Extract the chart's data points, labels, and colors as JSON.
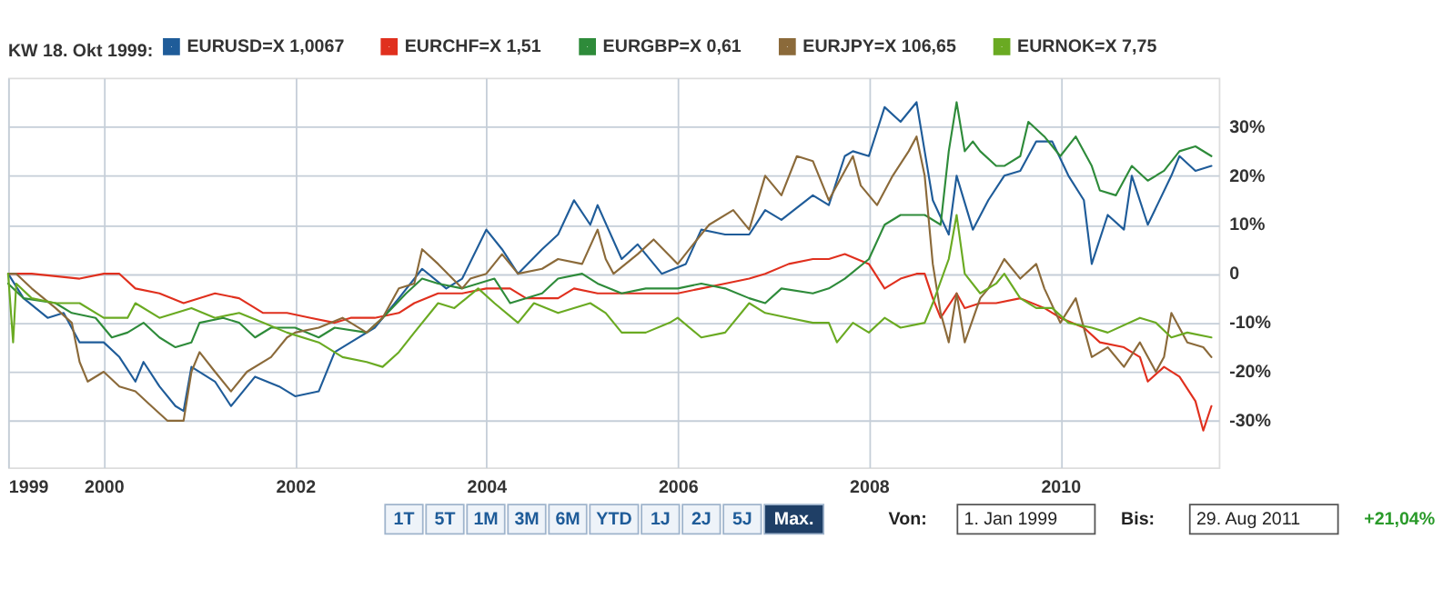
{
  "chart_data": {
    "type": "line",
    "legend_title": "KW 18. Okt 1999:",
    "legend": "top",
    "grid": true,
    "line_style": "solid",
    "xlim": [
      "1999-01-01",
      "2011-08-29"
    ],
    "xticks": [
      "1999",
      "2000",
      "2002",
      "2004",
      "2006",
      "2008",
      "2010"
    ],
    "ylim": [
      -39.5,
      40
    ],
    "yticks": [
      {
        "value": 30,
        "label": "30%"
      },
      {
        "value": 20,
        "label": "20%"
      },
      {
        "value": 10,
        "label": "10%"
      },
      0,
      {
        "value": -10,
        "label": "-10%"
      },
      {
        "value": -20,
        "label": "-20%"
      },
      {
        "value": -30,
        "label": "-30%"
      }
    ],
    "series": [
      {
        "name": "EURUSD=X 1,0067",
        "color": "#1f5c99",
        "x": [
          "1999-01",
          "1999-03",
          "1999-06",
          "1999-08",
          "1999-10",
          "2000-01",
          "2000-03",
          "2000-05",
          "2000-06",
          "2000-08",
          "2000-10",
          "2000-11",
          "2000-12",
          "2001-03",
          "2001-05",
          "2001-08",
          "2001-11",
          "2002-01",
          "2002-04",
          "2002-06",
          "2002-08",
          "2002-11",
          "2003-02",
          "2003-05",
          "2003-08",
          "2003-10",
          "2004-01",
          "2004-03",
          "2004-05",
          "2004-08",
          "2004-10",
          "2004-12",
          "2005-02",
          "2005-03",
          "2005-06",
          "2005-08",
          "2005-11",
          "2006-02",
          "2006-04",
          "2006-07",
          "2006-10",
          "2006-12",
          "2007-02",
          "2007-06",
          "2007-08",
          "2007-10",
          "2007-11",
          "2008-01",
          "2008-03",
          "2008-05",
          "2008-07",
          "2008-08",
          "2008-09",
          "2008-11",
          "2008-12",
          "2009-02",
          "2009-04",
          "2009-06",
          "2009-08",
          "2009-10",
          "2009-12",
          "2010-02",
          "2010-04",
          "2010-05",
          "2010-07",
          "2010-09",
          "2010-10",
          "2010-12",
          "2011-03",
          "2011-04",
          "2011-06",
          "2011-08"
        ],
        "values": [
          0,
          -5,
          -9,
          -8,
          -14,
          -14,
          -17,
          -22,
          -18,
          -23,
          -27,
          -28,
          -19,
          -22,
          -27,
          -21,
          -23,
          -25,
          -24,
          -16,
          -14,
          -11,
          -5,
          1,
          -3,
          -1,
          9,
          5,
          0,
          5,
          8,
          15,
          10,
          14,
          3,
          6,
          0,
          2,
          9,
          8,
          8,
          13,
          11,
          16,
          14,
          24,
          25,
          24,
          34,
          31,
          35,
          25,
          15,
          8,
          20,
          9,
          15,
          20,
          21,
          27,
          27,
          20,
          15,
          2,
          12,
          9,
          20,
          10,
          20,
          24,
          21,
          22
        ]
      },
      {
        "name": "EURCHF=X 1,51",
        "color": "#e0301e",
        "x": [
          "1999-01",
          "1999-04",
          "1999-10",
          "2000-01",
          "2000-03",
          "2000-05",
          "2000-08",
          "2000-11",
          "2001-03",
          "2001-06",
          "2001-09",
          "2001-12",
          "2002-03",
          "2002-06",
          "2002-08",
          "2002-11",
          "2003-02",
          "2003-04",
          "2003-07",
          "2003-10",
          "2004-01",
          "2004-04",
          "2004-06",
          "2004-10",
          "2004-12",
          "2005-03",
          "2005-06",
          "2005-10",
          "2006-01",
          "2006-04",
          "2006-07",
          "2006-10",
          "2006-12",
          "2007-03",
          "2007-06",
          "2007-08",
          "2007-10",
          "2008-01",
          "2008-03",
          "2008-05",
          "2008-07",
          "2008-08",
          "2008-09",
          "2008-10",
          "2008-12",
          "2009-01",
          "2009-03",
          "2009-05",
          "2009-08",
          "2009-11",
          "2010-01",
          "2010-04",
          "2010-06",
          "2010-09",
          "2010-11",
          "2010-12",
          "2011-02",
          "2011-04",
          "2011-06",
          "2011-07",
          "2011-08"
        ],
        "values": [
          0,
          0,
          -1,
          0,
          0,
          -3,
          -4,
          -6,
          -4,
          -5,
          -8,
          -8,
          -9,
          -10,
          -9,
          -9,
          -8,
          -6,
          -4,
          -4,
          -3,
          -3,
          -5,
          -5,
          -3,
          -4,
          -4,
          -4,
          -4,
          -3,
          -2,
          -1,
          0,
          2,
          3,
          3,
          4,
          2,
          -3,
          -1,
          0,
          0,
          -5,
          -9,
          -4,
          -7,
          -6,
          -6,
          -5,
          -7,
          -9,
          -11,
          -14,
          -15,
          -17,
          -22,
          -19,
          -21,
          -26,
          -32,
          -27
        ]
      },
      {
        "name": "EURGBP=X 0,61",
        "color": "#2e8b3a",
        "x": [
          "1999-01",
          "1999-03",
          "1999-07",
          "1999-09",
          "1999-12",
          "2000-02",
          "2000-04",
          "2000-06",
          "2000-08",
          "2000-10",
          "2000-12",
          "2001-01",
          "2001-04",
          "2001-06",
          "2001-08",
          "2001-10",
          "2002-01",
          "2002-04",
          "2002-06",
          "2002-10",
          "2002-12",
          "2003-03",
          "2003-05",
          "2003-07",
          "2003-10",
          "2004-02",
          "2004-04",
          "2004-08",
          "2004-10",
          "2005-01",
          "2005-03",
          "2005-06",
          "2005-09",
          "2006-01",
          "2006-04",
          "2006-07",
          "2006-10",
          "2006-12",
          "2007-02",
          "2007-06",
          "2007-08",
          "2007-10",
          "2008-01",
          "2008-03",
          "2008-05",
          "2008-08",
          "2008-10",
          "2008-11",
          "2008-12",
          "2009-01",
          "2009-02",
          "2009-03",
          "2009-05",
          "2009-06",
          "2009-08",
          "2009-09",
          "2009-11",
          "2010-01",
          "2010-03",
          "2010-05",
          "2010-06",
          "2010-08",
          "2010-10",
          "2010-12",
          "2011-02",
          "2011-04",
          "2011-06",
          "2011-08"
        ],
        "values": [
          -2,
          -5,
          -6,
          -8,
          -9,
          -13,
          -12,
          -10,
          -13,
          -15,
          -14,
          -10,
          -9,
          -10,
          -13,
          -11,
          -11,
          -13,
          -11,
          -12,
          -9,
          -4,
          -1,
          -2,
          -3,
          -1,
          -6,
          -4,
          -1,
          0,
          -2,
          -4,
          -3,
          -3,
          -2,
          -3,
          -5,
          -6,
          -3,
          -4,
          -3,
          -1,
          3,
          10,
          12,
          12,
          10,
          25,
          35,
          25,
          27,
          25,
          22,
          22,
          24,
          31,
          28,
          24,
          28,
          22,
          17,
          16,
          22,
          19,
          21,
          25,
          26,
          24
        ]
      },
      {
        "name": "EURJPY=X 106,65",
        "color": "#8b6a3a",
        "x": [
          "1999-01",
          "1999-02",
          "1999-04",
          "1999-07",
          "1999-09",
          "1999-10",
          "1999-11",
          "2000-01",
          "2000-03",
          "2000-05",
          "2000-07",
          "2000-09",
          "2000-11",
          "2000-12",
          "2001-01",
          "2001-03",
          "2001-05",
          "2001-07",
          "2001-10",
          "2001-12",
          "2002-01",
          "2002-04",
          "2002-07",
          "2002-10",
          "2002-12",
          "2003-02",
          "2003-04",
          "2003-05",
          "2003-07",
          "2003-10",
          "2003-11",
          "2004-01",
          "2004-03",
          "2004-05",
          "2004-08",
          "2004-10",
          "2005-01",
          "2005-03",
          "2005-04",
          "2005-05",
          "2005-08",
          "2005-10",
          "2006-01",
          "2006-03",
          "2006-05",
          "2006-08",
          "2006-10",
          "2006-12",
          "2007-02",
          "2007-04",
          "2007-06",
          "2007-08",
          "2007-10",
          "2007-11",
          "2007-12",
          "2008-02",
          "2008-04",
          "2008-06",
          "2008-07",
          "2008-08",
          "2008-09",
          "2008-10",
          "2008-11",
          "2008-12",
          "2009-01",
          "2009-03",
          "2009-04",
          "2009-06",
          "2009-08",
          "2009-10",
          "2009-11",
          "2010-01",
          "2010-03",
          "2010-05",
          "2010-07",
          "2010-09",
          "2010-11",
          "2011-01",
          "2011-02",
          "2011-03",
          "2011-05",
          "2011-07",
          "2011-08"
        ],
        "values": [
          0,
          0,
          -3,
          -7,
          -10,
          -18,
          -22,
          -20,
          -23,
          -24,
          -27,
          -30,
          -30,
          -20,
          -16,
          -20,
          -24,
          -20,
          -17,
          -13,
          -12,
          -11,
          -9,
          -12,
          -9,
          -3,
          -2,
          5,
          2,
          -3,
          -1,
          0,
          4,
          0,
          1,
          3,
          2,
          9,
          3,
          0,
          4,
          7,
          2,
          6,
          10,
          13,
          9,
          20,
          16,
          24,
          23,
          15,
          21,
          24,
          18,
          14,
          20,
          25,
          28,
          20,
          2,
          -8,
          -14,
          -4,
          -14,
          -5,
          -3,
          3,
          -1,
          2,
          -3,
          -10,
          -5,
          -17,
          -15,
          -19,
          -14,
          -20,
          -17,
          -8,
          -14,
          -15,
          -17
        ]
      },
      {
        "name": "EURNOK=X 7,75",
        "color": "#6aaa22",
        "x": [
          "1999-01",
          "1999-01-20",
          "1999-02",
          "1999-04",
          "1999-07",
          "1999-10",
          "2000-01",
          "2000-04",
          "2000-05",
          "2000-08",
          "2000-12",
          "2001-03",
          "2001-06",
          "2001-09",
          "2001-12",
          "2002-04",
          "2002-07",
          "2002-10",
          "2002-12",
          "2003-02",
          "2003-04",
          "2003-07",
          "2003-09",
          "2003-12",
          "2004-02",
          "2004-05",
          "2004-07",
          "2004-10",
          "2005-02",
          "2005-04",
          "2005-06",
          "2005-09",
          "2005-12",
          "2006-01",
          "2006-04",
          "2006-07",
          "2006-10",
          "2006-12",
          "2007-03",
          "2007-06",
          "2007-08",
          "2007-09",
          "2007-11",
          "2008-01",
          "2008-03",
          "2008-05",
          "2008-08",
          "2008-09",
          "2008-11",
          "2008-12",
          "2009-01",
          "2009-03",
          "2009-05",
          "2009-06",
          "2009-08",
          "2009-10",
          "2009-12",
          "2010-02",
          "2010-05",
          "2010-07",
          "2010-11",
          "2011-01",
          "2011-03",
          "2011-05",
          "2011-08"
        ],
        "values": [
          0,
          -14,
          -2,
          -5,
          -6,
          -6,
          -9,
          -9,
          -6,
          -9,
          -7,
          -9,
          -8,
          -10,
          -12,
          -14,
          -17,
          -18,
          -19,
          -16,
          -12,
          -6,
          -7,
          -3,
          -6,
          -10,
          -6,
          -8,
          -6,
          -8,
          -12,
          -12,
          -10,
          -9,
          -13,
          -12,
          -6,
          -8,
          -9,
          -10,
          -10,
          -14,
          -10,
          -12,
          -9,
          -11,
          -10,
          -6,
          3,
          12,
          0,
          -4,
          -2,
          0,
          -5,
          -7,
          -7,
          -10,
          -11,
          -12,
          -9,
          -10,
          -13,
          -12,
          -13
        ]
      }
    ],
    "annotations": [
      "1T",
      "5T",
      "1M",
      "3M",
      "6M",
      "YTD",
      "1J",
      "2J",
      "5J",
      "Max.",
      "Von:",
      "1. Jan 1999",
      "Bis:",
      "29. Aug 2011",
      "+21,04%"
    ]
  }
}
